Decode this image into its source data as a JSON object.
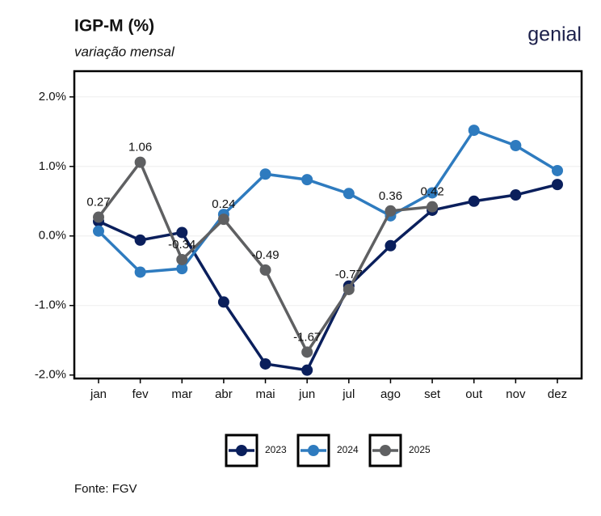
{
  "title": "IGP-M (%)",
  "subtitle": "variação mensal",
  "logo": "genial",
  "source": "Fonte: FGV",
  "chart_data": {
    "type": "line",
    "categories": [
      "jan",
      "fev",
      "mar",
      "abr",
      "mai",
      "jun",
      "jul",
      "ago",
      "set",
      "out",
      "nov",
      "dez"
    ],
    "series": [
      {
        "name": "2023",
        "color": "#0a1f5c",
        "values": [
          0.21,
          -0.06,
          0.05,
          -0.95,
          -1.84,
          -1.93,
          -0.72,
          -0.14,
          0.37,
          0.5,
          0.59,
          0.74
        ]
      },
      {
        "name": "2024",
        "color": "#2e7bbf",
        "values": [
          0.07,
          -0.52,
          -0.47,
          0.31,
          0.89,
          0.81,
          0.61,
          0.29,
          0.62,
          1.52,
          1.3,
          0.94
        ]
      },
      {
        "name": "2025",
        "color": "#5f6062",
        "values": [
          0.27,
          1.06,
          -0.34,
          0.24,
          -0.49,
          -1.67,
          -0.77,
          0.36,
          0.42,
          null,
          null,
          null
        ],
        "data_labels": true
      }
    ],
    "ylim": [
      -2.05,
      2.37
    ],
    "yticks": [
      {
        "value": -2,
        "label": "-2.0%"
      },
      {
        "value": -1,
        "label": "-1.0%"
      },
      {
        "value": 0,
        "label": "0.0%"
      },
      {
        "value": 1,
        "label": "1.0%"
      },
      {
        "value": 2,
        "label": "2.0%"
      }
    ],
    "grid": true,
    "legend": "bottom"
  }
}
